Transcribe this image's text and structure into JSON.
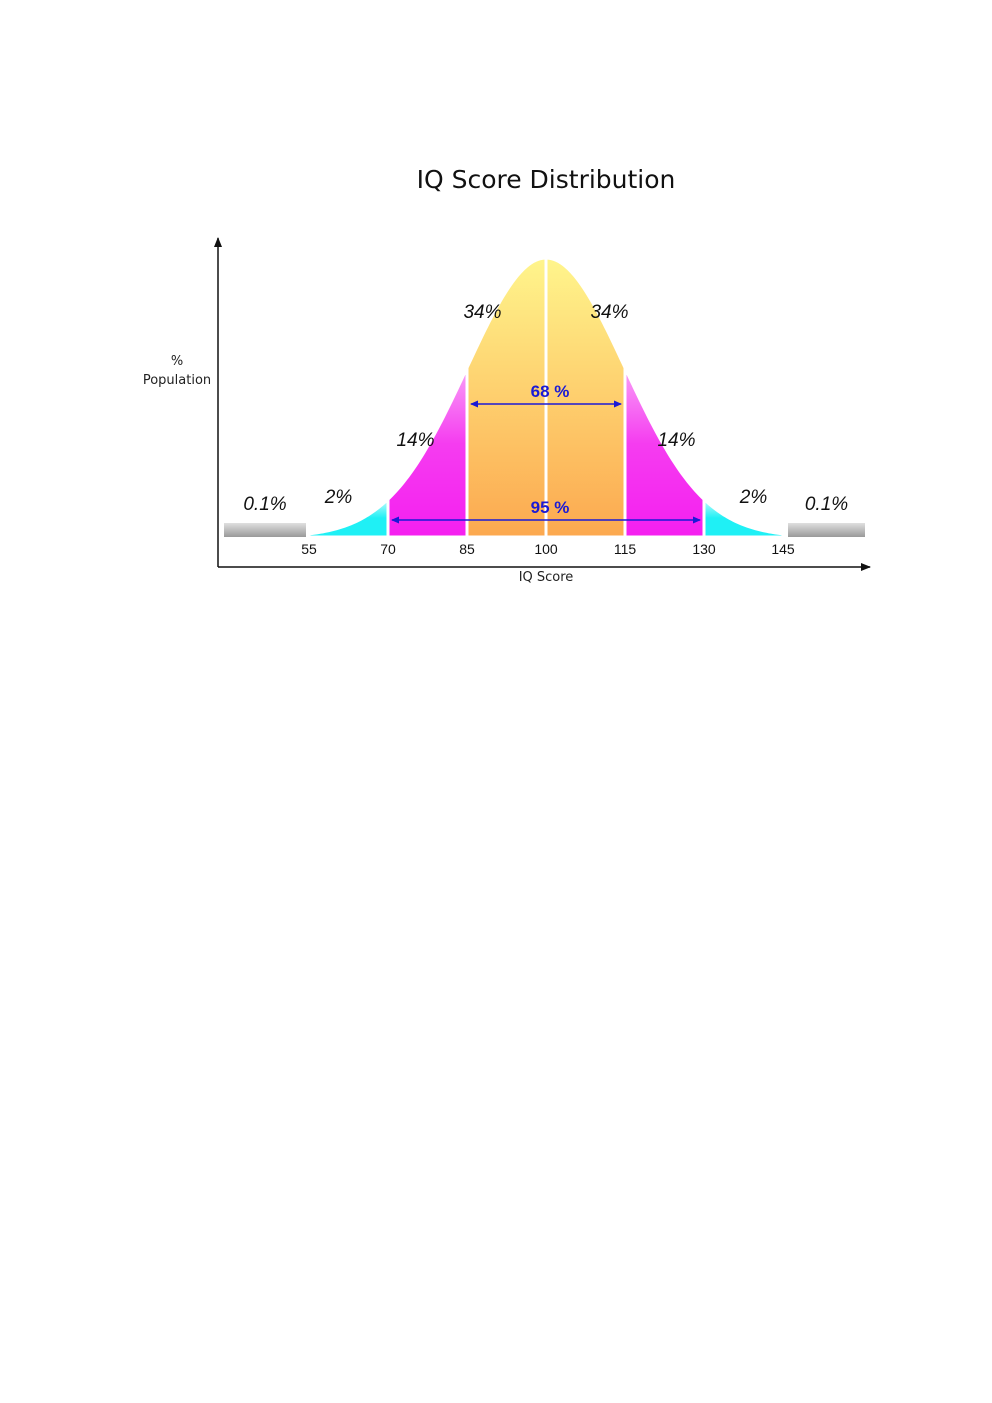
{
  "chart_data": {
    "type": "area",
    "title": "IQ Score Distribution",
    "ylabel_lines": [
      "%",
      "Population"
    ],
    "xlabel": "IQ Score",
    "mean": 100,
    "sd": 15,
    "xlim": [
      40,
      160
    ],
    "ticks": [
      55,
      70,
      85,
      100,
      115,
      130,
      145
    ],
    "tick_labels": [
      "55",
      "70",
      "85",
      "100",
      "115",
      "130",
      "145"
    ],
    "bands": [
      {
        "from": 40,
        "to": 55,
        "percent_label": "0.1%",
        "color": "#b5b5b5",
        "kind": "tail-bar"
      },
      {
        "from": 55,
        "to": 70,
        "percent_label": "2%",
        "color": "#1ff0f5",
        "kind": "curve"
      },
      {
        "from": 70,
        "to": 85,
        "percent_label": "14%",
        "color": "#f51ff0",
        "kind": "curve"
      },
      {
        "from": 85,
        "to": 100,
        "percent_label": "34%",
        "color": "#fcd25a",
        "kind": "curve"
      },
      {
        "from": 100,
        "to": 115,
        "percent_label": "34%",
        "color": "#fcd25a",
        "kind": "curve"
      },
      {
        "from": 115,
        "to": 130,
        "percent_label": "14%",
        "color": "#f51ff0",
        "kind": "curve"
      },
      {
        "from": 130,
        "to": 145,
        "percent_label": "2%",
        "color": "#1ff0f5",
        "kind": "curve"
      },
      {
        "from": 145,
        "to": 160,
        "percent_label": "0.1%",
        "color": "#b5b5b5",
        "kind": "tail-bar"
      }
    ],
    "spans": [
      {
        "from": 85,
        "to": 115,
        "label": "68 %"
      },
      {
        "from": 70,
        "to": 130,
        "label": "95 %"
      }
    ],
    "colors": {
      "core_top": "#fff58c",
      "core_bottom": "#fca84f",
      "magenta": "#f51ff0",
      "cyan": "#1ff0f5",
      "grey": "#b5b5b5",
      "span_arrow": "#1a1ad6"
    }
  }
}
